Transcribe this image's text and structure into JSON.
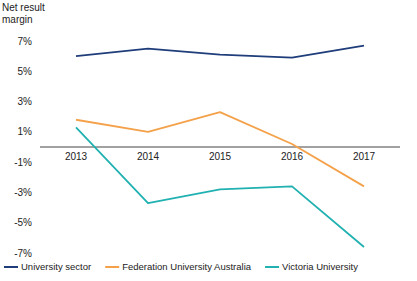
{
  "chart_data": {
    "type": "line",
    "y_label": "Net result margin",
    "categories": [
      "2013",
      "2014",
      "2015",
      "2016",
      "2017"
    ],
    "series": [
      {
        "name": "University sector",
        "color": "#1f3d7a",
        "values": [
          6.0,
          6.5,
          6.1,
          5.9,
          6.7
        ]
      },
      {
        "name": "Federation University Australia",
        "color": "#f4a14a",
        "values": [
          1.8,
          1.0,
          2.3,
          0.2,
          -2.6
        ]
      },
      {
        "name": "Victoria University",
        "color": "#21b1b1",
        "values": [
          1.3,
          -3.7,
          -2.8,
          -2.6,
          -6.6
        ]
      }
    ],
    "ylim": [
      -7,
      7
    ],
    "yticks": [
      {
        "value": 7,
        "label": "7%"
      },
      {
        "value": 5,
        "label": "5%"
      },
      {
        "value": 3,
        "label": "3%"
      },
      {
        "value": 1,
        "label": "1%"
      },
      {
        "value": -1,
        "label": "-1%"
      },
      {
        "value": -3,
        "label": "-3%"
      },
      {
        "value": -5,
        "label": "-5%"
      },
      {
        "value": -7,
        "label": "-7%"
      }
    ],
    "grid": false,
    "legend": "bottom"
  }
}
